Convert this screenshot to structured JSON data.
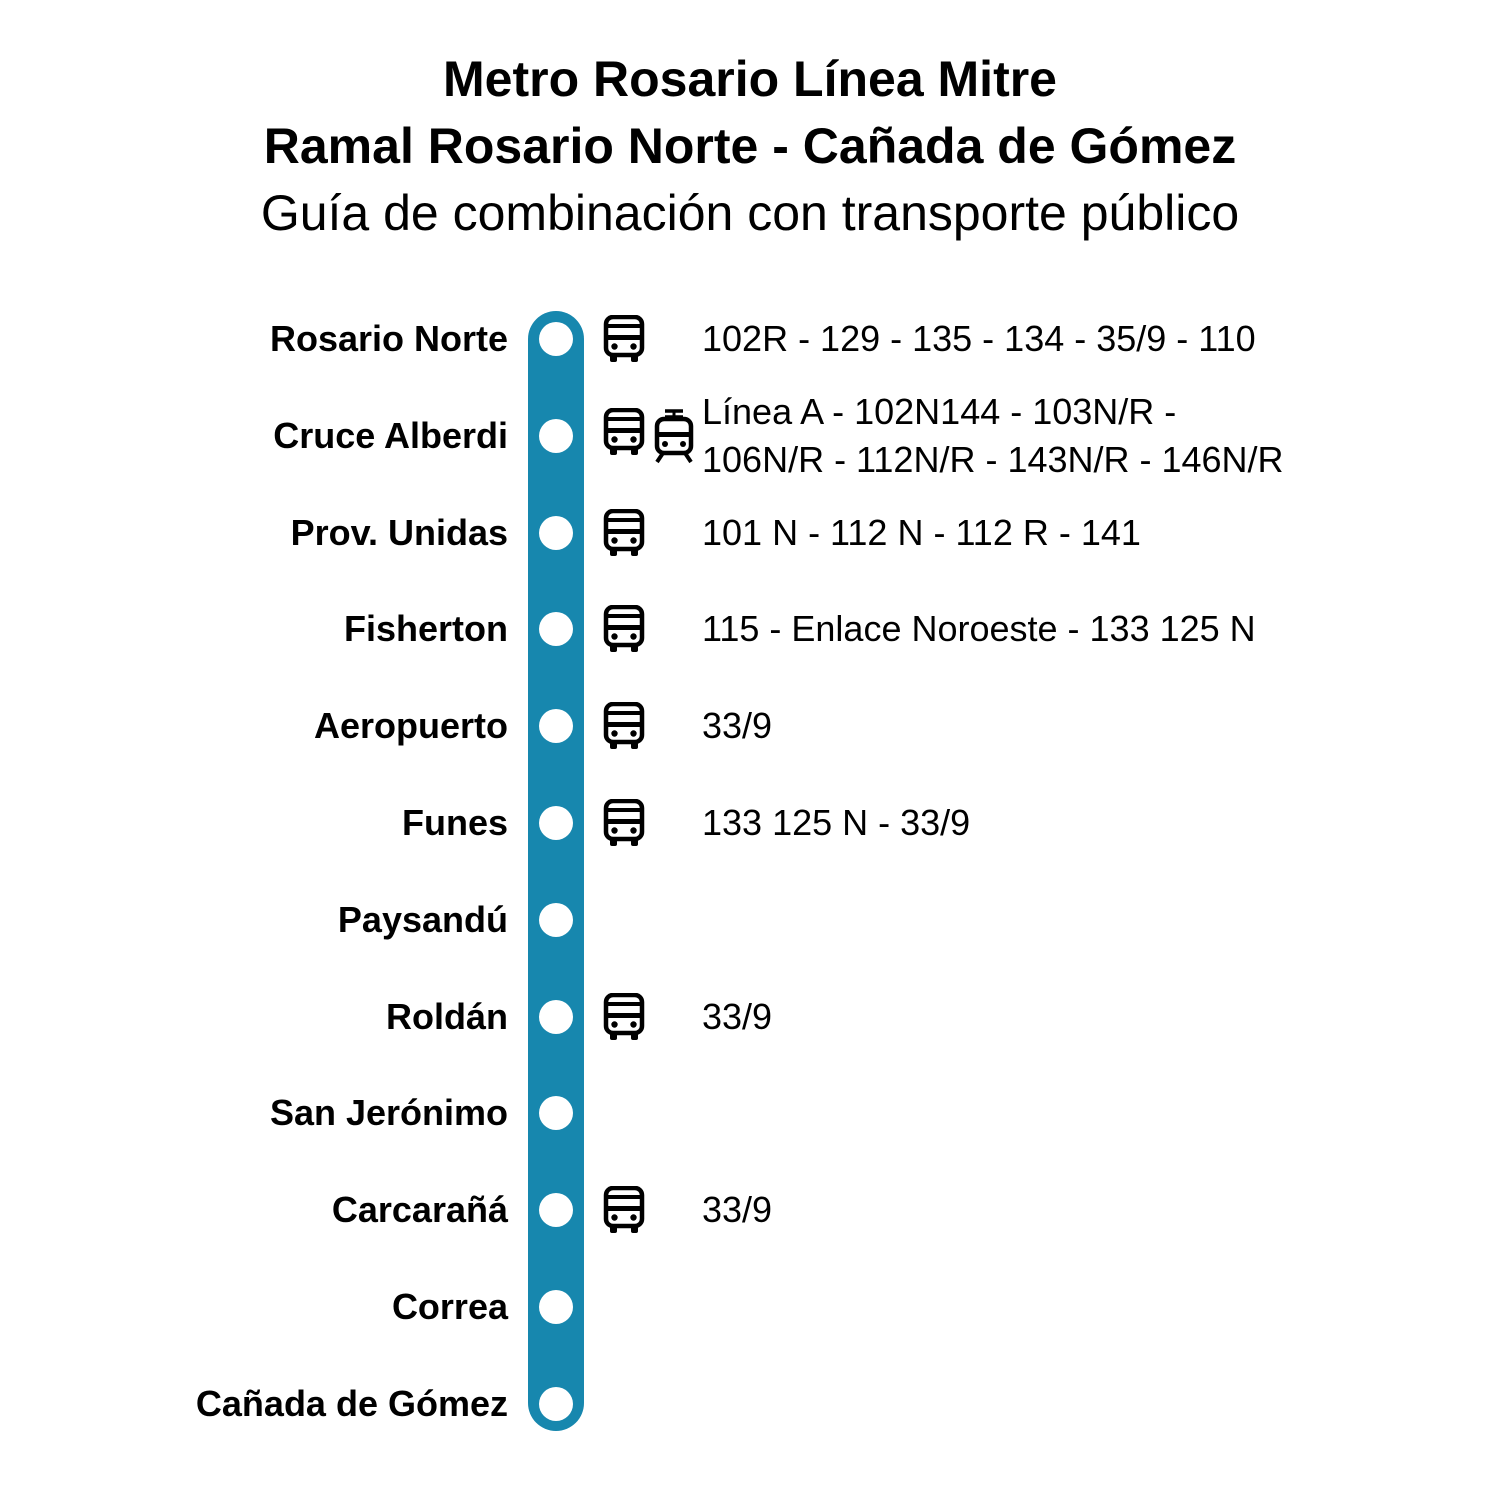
{
  "header": {
    "title_line1": "Metro Rosario Línea Mitre",
    "title_line2": "Ramal Rosario Norte - Cañada de Gómez",
    "subtitle": "Guía de combinación con transporte público"
  },
  "line_color": "#1787AE",
  "stations": [
    {
      "name": "Rosario Norte",
      "icons": [
        "bus-icon"
      ],
      "connections": [
        "102R - 129 - 135 - 134 - 35/9 - 110"
      ]
    },
    {
      "name": "Cruce Alberdi",
      "icons": [
        "bus-icon",
        "tram-icon"
      ],
      "connections": [
        "Línea A - 102N144 - 103N/R -",
        "106N/R - 112N/R - 143N/R - 146N/R"
      ]
    },
    {
      "name": "Prov. Unidas",
      "icons": [
        "bus-icon"
      ],
      "connections": [
        "101 N - 112 N - 112 R - 141"
      ]
    },
    {
      "name": "Fisherton",
      "icons": [
        "bus-icon"
      ],
      "connections": [
        "115 - Enlace Noroeste - 133 125 N"
      ]
    },
    {
      "name": "Aeropuerto",
      "icons": [
        "bus-icon"
      ],
      "connections": [
        "33/9"
      ]
    },
    {
      "name": "Funes",
      "icons": [
        "bus-icon"
      ],
      "connections": [
        "133 125 N - 33/9"
      ]
    },
    {
      "name": "Paysandú",
      "icons": [],
      "connections": []
    },
    {
      "name": "Roldán",
      "icons": [
        "bus-icon"
      ],
      "connections": [
        "33/9"
      ]
    },
    {
      "name": "San Jerónimo",
      "icons": [],
      "connections": []
    },
    {
      "name": "Carcarañá",
      "icons": [
        "bus-icon"
      ],
      "connections": [
        "33/9"
      ]
    },
    {
      "name": "Correa",
      "icons": [],
      "connections": []
    },
    {
      "name": "Cañada de Gómez",
      "icons": [],
      "connections": []
    }
  ]
}
